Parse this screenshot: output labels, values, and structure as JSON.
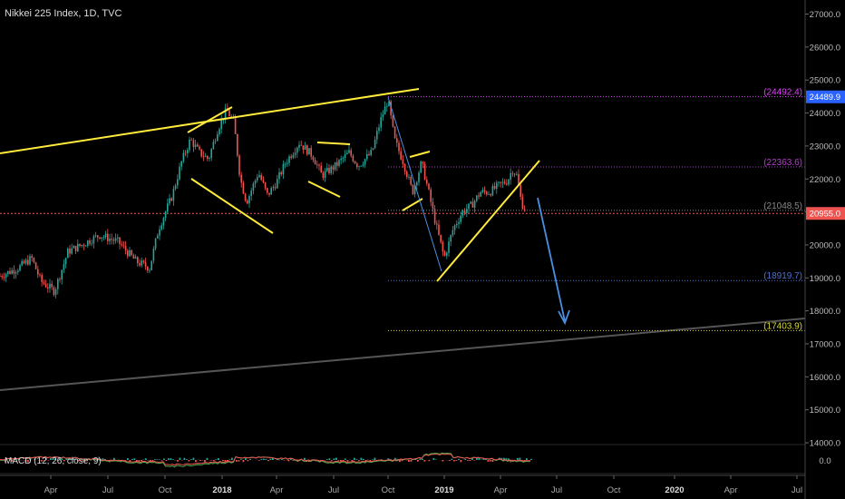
{
  "header": {
    "title": "Nikkei 225 Index, 1D, TVC"
  },
  "macd": {
    "label": "MACD (12, 26, close, 9)",
    "ticks": [
      "0.0"
    ]
  },
  "chart_data": {
    "type": "candlestick",
    "y_axis": {
      "range": [
        13500,
        27300
      ],
      "ticks": [
        "27000.0",
        "26000.0",
        "25000.0",
        "24000.0",
        "23000.0",
        "22000.0",
        "21000.0",
        "20000.0",
        "19000.0",
        "18000.0",
        "17000.0",
        "16000.0",
        "15000.0",
        "14000.0"
      ]
    },
    "x_axis": {
      "ticks": [
        "Apr",
        "Jul",
        "Oct",
        "2018",
        "Apr",
        "Jul",
        "Oct",
        "2019",
        "Apr",
        "Jul",
        "Oct",
        "2020",
        "Apr",
        "Jul"
      ]
    },
    "price_tags": [
      {
        "label": "24489.9",
        "value": 24489.9,
        "color": "#2962ff"
      },
      {
        "label": "20955.0",
        "value": 20955.0,
        "color": "#ef5350"
      }
    ],
    "levels": [
      {
        "label": "(24492.4)",
        "value": 24492.4,
        "color": "#e040fb"
      },
      {
        "label": "(22363.6)",
        "value": 22363.6,
        "color": "#b040c8"
      },
      {
        "label": "(21048.5)",
        "value": 21048.5,
        "color": "#8a8a8a"
      },
      {
        "label": "(18919.7)",
        "value": 18919.7,
        "color": "#4f6fd0"
      },
      {
        "label": "(17403.9)",
        "value": 17403.9,
        "color": "#d8d830"
      }
    ],
    "colors": {
      "up": "#26a69a",
      "down": "#ef5350",
      "trendline": "#ffeb3b",
      "arrow": "#4a90e2",
      "support": "#555555"
    },
    "path": [
      [
        -5,
        19000
      ],
      [
        20,
        19300
      ],
      [
        35,
        19600
      ],
      [
        45,
        18900
      ],
      [
        60,
        18600
      ],
      [
        75,
        19800
      ],
      [
        90,
        20000
      ],
      [
        110,
        20300
      ],
      [
        130,
        20100
      ],
      [
        150,
        19500
      ],
      [
        165,
        19300
      ],
      [
        175,
        20500
      ],
      [
        190,
        21500
      ],
      [
        200,
        22500
      ],
      [
        210,
        23200
      ],
      [
        220,
        22800
      ],
      [
        230,
        22600
      ],
      [
        240,
        23500
      ],
      [
        250,
        24100
      ],
      [
        258,
        23700
      ],
      [
        265,
        22000
      ],
      [
        272,
        21300
      ],
      [
        285,
        22200
      ],
      [
        295,
        21500
      ],
      [
        305,
        21900
      ],
      [
        315,
        22500
      ],
      [
        330,
        23100
      ],
      [
        345,
        22700
      ],
      [
        355,
        22100
      ],
      [
        370,
        22400
      ],
      [
        385,
        22800
      ],
      [
        395,
        22400
      ],
      [
        410,
        22800
      ],
      [
        420,
        23800
      ],
      [
        428,
        24400
      ],
      [
        435,
        23200
      ],
      [
        445,
        22500
      ],
      [
        455,
        21600
      ],
      [
        465,
        22500
      ],
      [
        472,
        21700
      ],
      [
        480,
        20700
      ],
      [
        490,
        19600
      ],
      [
        500,
        20500
      ],
      [
        510,
        21000
      ],
      [
        520,
        21200
      ],
      [
        530,
        21600
      ],
      [
        540,
        21600
      ],
      [
        550,
        21800
      ],
      [
        560,
        21950
      ],
      [
        565,
        22300
      ],
      [
        570,
        22100
      ],
      [
        575,
        21300
      ],
      [
        580,
        21000
      ]
    ]
  }
}
